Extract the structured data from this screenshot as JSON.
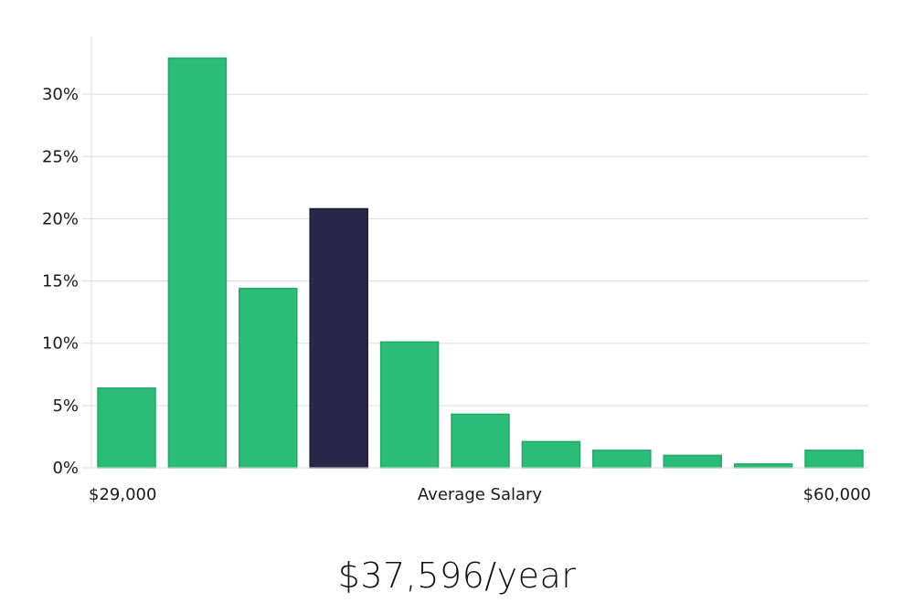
{
  "chart_data": {
    "type": "bar",
    "title": "",
    "xlabel": "Average Salary",
    "ylabel": "",
    "ylim": [
      0,
      35
    ],
    "yticks": [
      0,
      5,
      10,
      15,
      20,
      25,
      30
    ],
    "ytick_suffix": "%",
    "x_range_labels": {
      "min": "$29,000",
      "max": "$60,000"
    },
    "bins": 11,
    "values": [
      6.4,
      32.9,
      14.4,
      20.8,
      10.1,
      4.3,
      2.1,
      1.4,
      1.0,
      0.3,
      1.4
    ],
    "highlight_index": 3,
    "grid": true
  },
  "colors": {
    "bar": "#2bbd77",
    "bar_stroke": "#24a867",
    "highlight": "#292647",
    "highlight_stroke": "#1e1c38",
    "grid": "#dddddd",
    "axis": "#dddddd"
  },
  "summary": {
    "salary_label": "$37,596/year"
  }
}
